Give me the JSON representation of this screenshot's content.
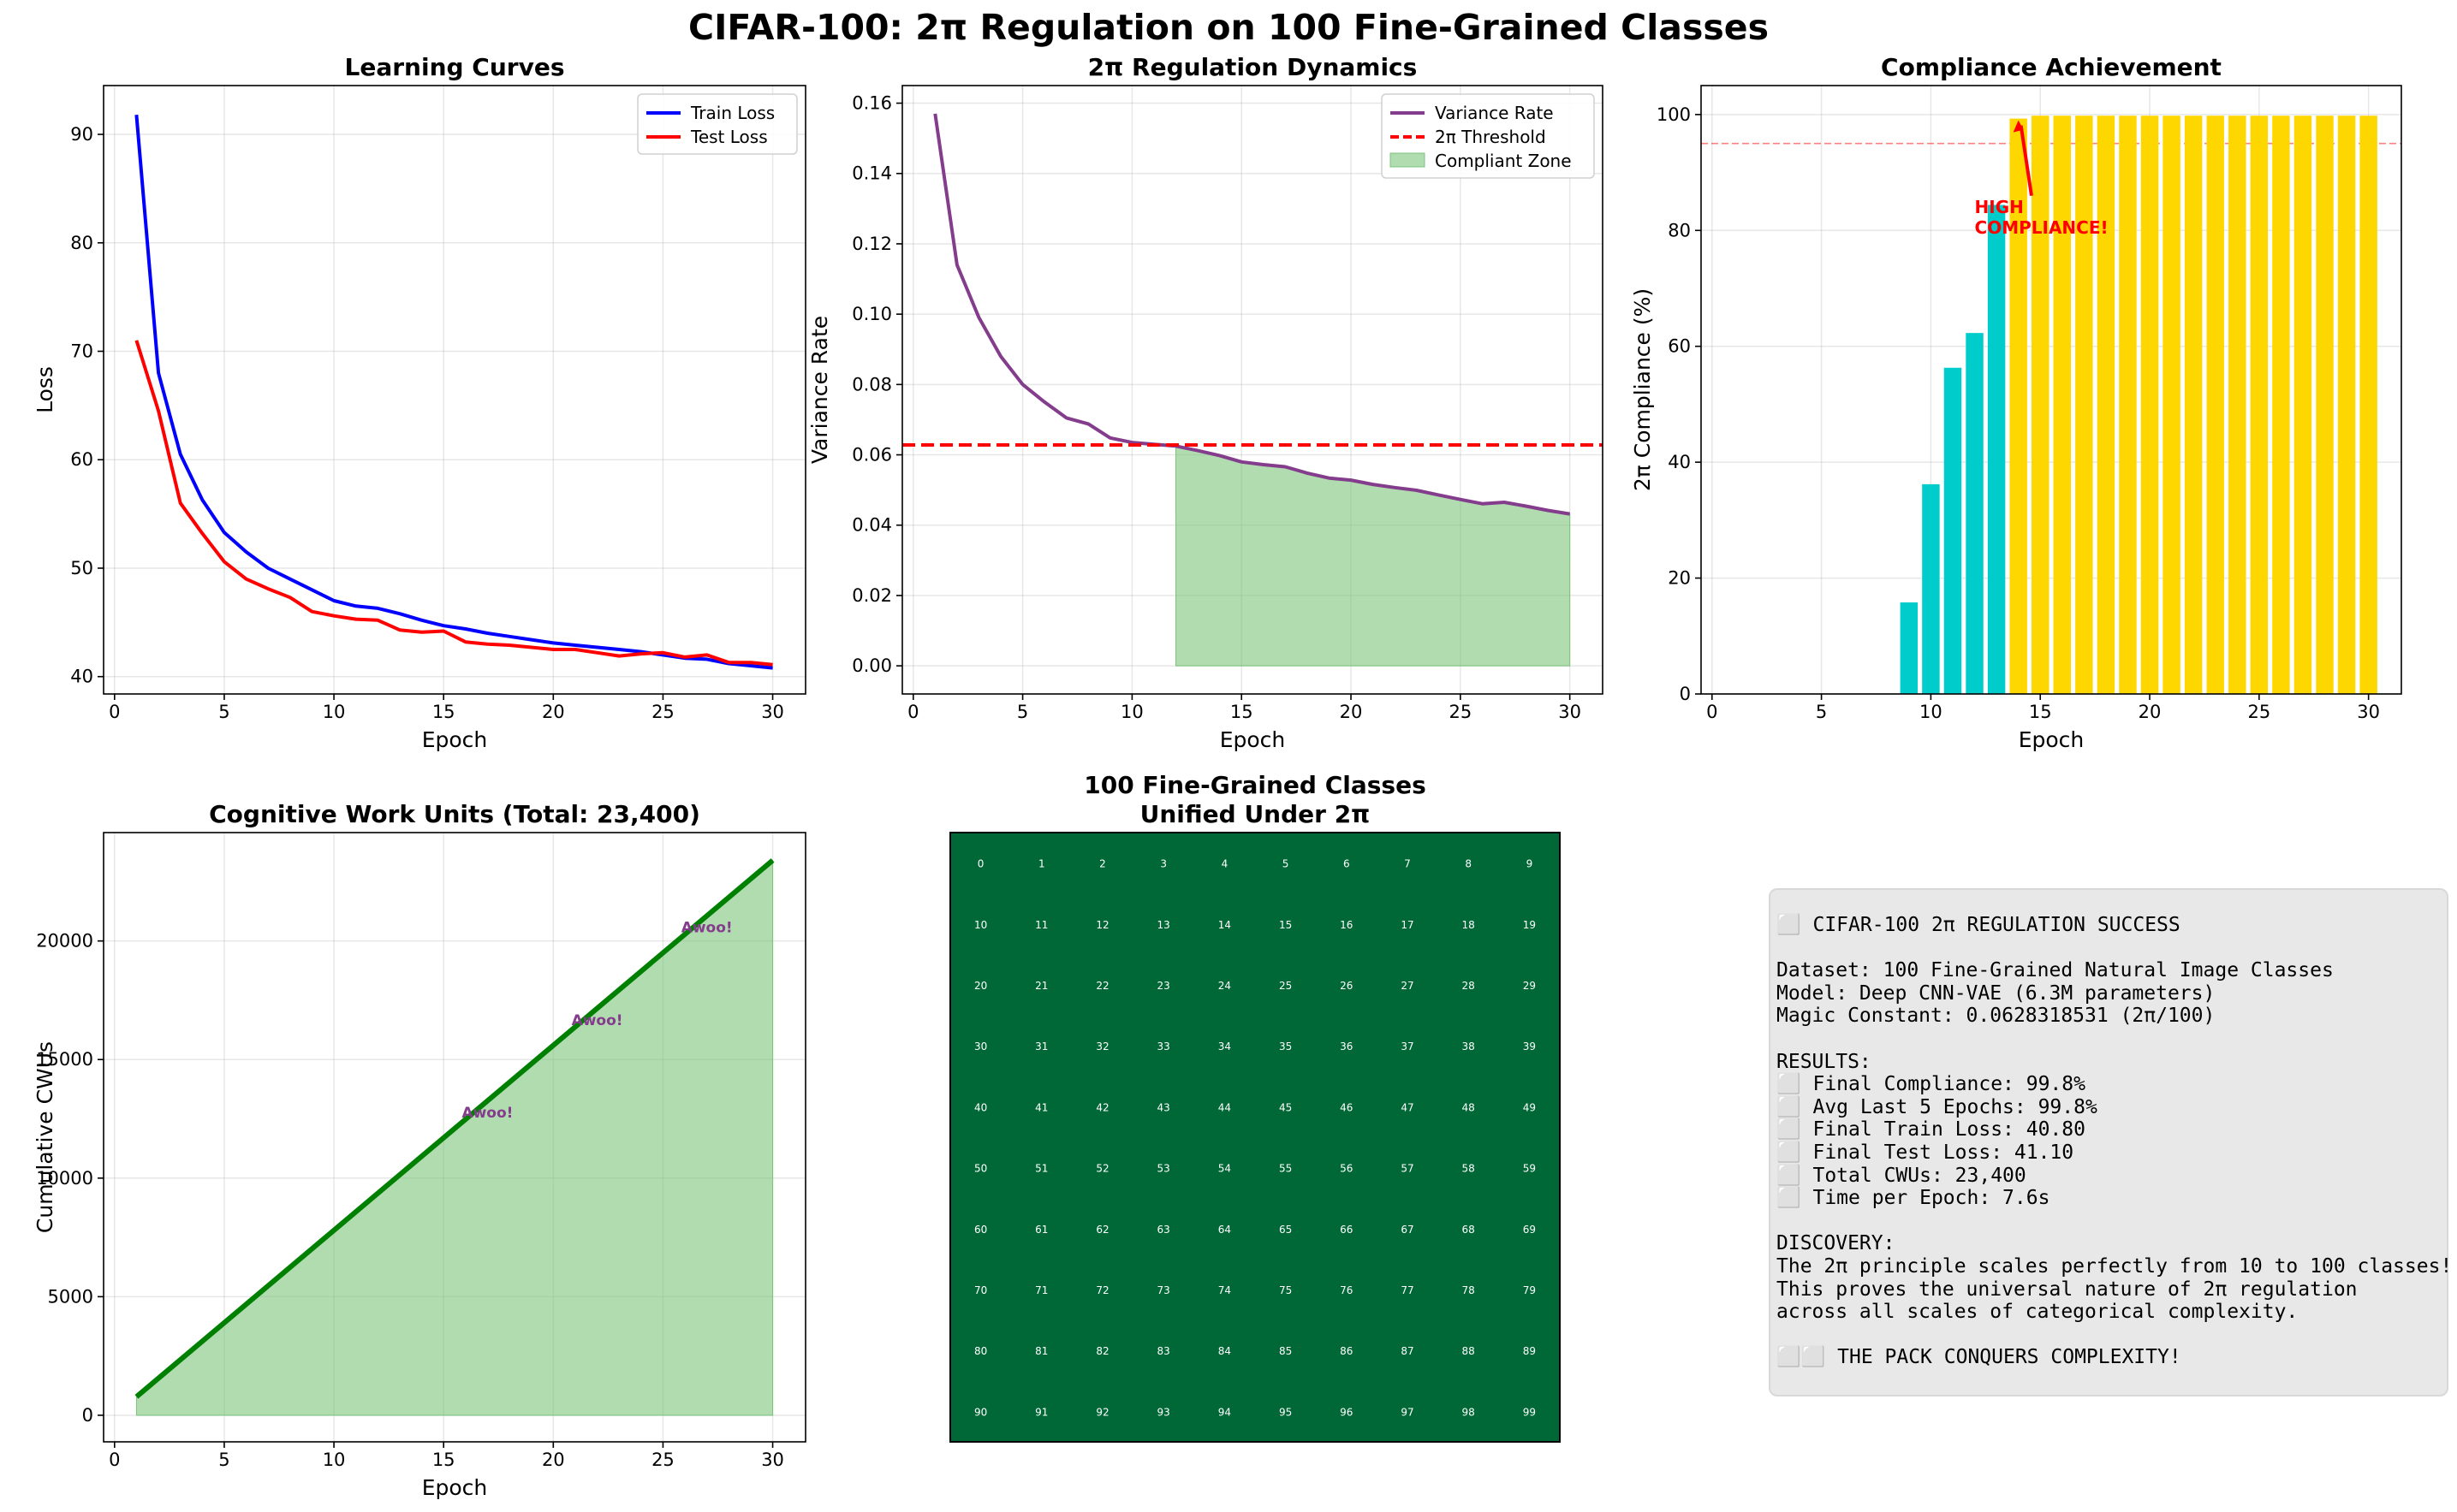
{
  "suptitle": "CIFAR-100: 2π Regulation on 100 Fine-Grained Classes",
  "chart_data": [
    {
      "id": "learning",
      "type": "line",
      "title": "Learning Curves",
      "xlabel": "Epoch",
      "ylabel": "Loss",
      "xlim": [
        -0.5,
        31.5
      ],
      "ylim": [
        38.4,
        94.5
      ],
      "xticks": [
        0,
        5,
        10,
        15,
        20,
        25,
        30
      ],
      "yticks": [
        40,
        50,
        60,
        70,
        80,
        90
      ],
      "grid": true,
      "legend": "top-right",
      "x": [
        1,
        2,
        3,
        4,
        5,
        6,
        7,
        8,
        9,
        10,
        11,
        12,
        13,
        14,
        15,
        16,
        17,
        18,
        19,
        20,
        21,
        22,
        23,
        24,
        25,
        26,
        27,
        28,
        29,
        30
      ],
      "series": [
        {
          "name": "Train Loss",
          "color": "#0000ff",
          "values": [
            91.8,
            68.0,
            60.5,
            56.3,
            53.3,
            51.5,
            50.0,
            49.0,
            48.0,
            47.0,
            46.5,
            46.3,
            45.8,
            45.2,
            44.7,
            44.4,
            44.0,
            43.7,
            43.4,
            43.1,
            42.9,
            42.7,
            42.5,
            42.3,
            42.0,
            41.7,
            41.6,
            41.2,
            41.0,
            40.8
          ]
        },
        {
          "name": "Test Loss",
          "color": "#ff0000",
          "values": [
            71.0,
            64.5,
            56.0,
            53.2,
            50.6,
            49.0,
            48.1,
            47.3,
            46.0,
            45.6,
            45.3,
            45.2,
            44.3,
            44.1,
            44.2,
            43.2,
            43.0,
            42.9,
            42.7,
            42.5,
            42.5,
            42.2,
            41.9,
            42.1,
            42.2,
            41.8,
            42.0,
            41.3,
            41.3,
            41.1
          ]
        }
      ]
    },
    {
      "id": "variance",
      "type": "line",
      "title": "2π Regulation Dynamics",
      "xlabel": "Epoch",
      "ylabel": "Variance Rate",
      "xlim": [
        -0.5,
        31.5
      ],
      "ylim": [
        -0.008,
        0.165
      ],
      "xticks": [
        0,
        5,
        10,
        15,
        20,
        25,
        30
      ],
      "yticks": [
        0.0,
        0.02,
        0.04,
        0.06,
        0.08,
        0.1,
        0.12,
        0.14,
        0.16
      ],
      "grid": true,
      "legend": "top-right",
      "x": [
        1,
        2,
        3,
        4,
        5,
        6,
        7,
        8,
        9,
        10,
        11,
        12,
        13,
        14,
        15,
        16,
        17,
        18,
        19,
        20,
        21,
        22,
        23,
        24,
        25,
        26,
        27,
        28,
        29,
        30
      ],
      "series": [
        {
          "name": "Variance Rate",
          "color": "#843c8c",
          "values": [
            0.157,
            0.114,
            0.099,
            0.088,
            0.08,
            0.075,
            0.0705,
            0.0688,
            0.0648,
            0.0635,
            0.063,
            0.0625,
            0.0612,
            0.0598,
            0.058,
            0.0572,
            0.0566,
            0.0548,
            0.0534,
            0.0528,
            0.0516,
            0.0507,
            0.0499,
            0.0486,
            0.0473,
            0.0461,
            0.0465,
            0.0454,
            0.0442,
            0.0432
          ]
        }
      ],
      "threshold": {
        "name": "2π Threshold",
        "value": 0.0628,
        "color": "#ff0000"
      },
      "fill": {
        "name": "Compliant Zone",
        "from_epoch": 12,
        "color": "#7cc47c"
      }
    },
    {
      "id": "compliance",
      "type": "bar",
      "title": "Compliance Achievement",
      "xlabel": "Epoch",
      "ylabel": "2π Compliance (%)",
      "xlim": [
        -0.5,
        31.5
      ],
      "ylim": [
        0,
        105
      ],
      "xticks": [
        0,
        5,
        10,
        15,
        20,
        25,
        30
      ],
      "yticks": [
        0,
        20,
        40,
        60,
        80,
        100
      ],
      "grid": true,
      "x": [
        1,
        2,
        3,
        4,
        5,
        6,
        7,
        8,
        9,
        10,
        11,
        12,
        13,
        14,
        15,
        16,
        17,
        18,
        19,
        20,
        21,
        22,
        23,
        24,
        25,
        26,
        27,
        28,
        29,
        30
      ],
      "values": [
        0,
        0,
        0,
        0,
        0,
        0,
        0,
        0,
        15.8,
        36.2,
        56.3,
        62.3,
        84.4,
        99.3,
        99.8,
        99.8,
        99.8,
        99.8,
        99.8,
        99.8,
        99.8,
        99.8,
        99.8,
        99.8,
        99.8,
        99.8,
        99.8,
        99.8,
        99.8,
        99.8
      ],
      "low_color": "#00cccc",
      "high_color": "#ffd700",
      "high_cutoff": 95,
      "ref_line": 95,
      "annotation": {
        "text": [
          "HIGH",
          "COMPLIANCE!"
        ],
        "color": "#ff0000",
        "arrow_to_epoch": 14,
        "arrow_to_value": 99
      }
    },
    {
      "id": "cwus",
      "type": "area",
      "title": "Cognitive Work Units (Total: 23,400)",
      "xlabel": "Epoch",
      "ylabel": "Cumulative CWUs",
      "xlim": [
        -0.5,
        31.5
      ],
      "ylim": [
        -1120,
        24570
      ],
      "xticks": [
        0,
        5,
        10,
        15,
        20,
        25,
        30
      ],
      "yticks": [
        0,
        5000,
        10000,
        15000,
        20000
      ],
      "grid": true,
      "x": [
        1,
        30
      ],
      "values": [
        780,
        23400
      ],
      "color": "#008000",
      "fill_color": "#7cc47c",
      "labels": [
        {
          "text": "Awoo!",
          "epoch": 17,
          "value": 12560
        },
        {
          "text": "Awoo!",
          "epoch": 22,
          "value": 16460
        },
        {
          "text": "Awoo!",
          "epoch": 27,
          "value": 20360
        }
      ]
    },
    {
      "id": "classes",
      "type": "heatmap",
      "title": [
        "100 Fine-Grained Classes",
        "Unified Under 2π"
      ],
      "rows": 10,
      "cols": 10,
      "color": "#006837",
      "cell_labels": [
        "0",
        "1",
        "2",
        "3",
        "4",
        "5",
        "6",
        "7",
        "8",
        "9",
        "10",
        "11",
        "12",
        "13",
        "14",
        "15",
        "16",
        "17",
        "18",
        "19",
        "20",
        "21",
        "22",
        "23",
        "24",
        "25",
        "26",
        "27",
        "28",
        "29",
        "30",
        "31",
        "32",
        "33",
        "34",
        "35",
        "36",
        "37",
        "38",
        "39",
        "40",
        "41",
        "42",
        "43",
        "44",
        "45",
        "46",
        "47",
        "48",
        "49",
        "50",
        "51",
        "52",
        "53",
        "54",
        "55",
        "56",
        "57",
        "58",
        "59",
        "60",
        "61",
        "62",
        "63",
        "64",
        "65",
        "66",
        "67",
        "68",
        "69",
        "70",
        "71",
        "72",
        "73",
        "74",
        "75",
        "76",
        "77",
        "78",
        "79",
        "80",
        "81",
        "82",
        "83",
        "84",
        "85",
        "86",
        "87",
        "88",
        "89",
        "90",
        "91",
        "92",
        "93",
        "94",
        "95",
        "96",
        "97",
        "98",
        "99"
      ]
    }
  ],
  "summary_lines": [
    "⬜ CIFAR-100 2π REGULATION SUCCESS",
    "",
    "Dataset: 100 Fine-Grained Natural Image Classes",
    "Model: Deep CNN-VAE (6.3M parameters)",
    "Magic Constant: 0.0628318531 (2π/100)",
    "",
    "RESULTS:",
    "⬜ Final Compliance: 99.8%",
    "⬜ Avg Last 5 Epochs: 99.8%",
    "⬜ Final Train Loss: 40.80",
    "⬜ Final Test Loss: 41.10",
    "⬜ Total CWUs: 23,400",
    "⬜ Time per Epoch: 7.6s",
    "",
    "DISCOVERY:",
    "The 2π principle scales perfectly from 10 to 100 classes!",
    "This proves the universal nature of 2π regulation",
    "across all scales of categorical complexity.",
    "",
    "⬜⬜ THE PACK CONQUERS COMPLEXITY!"
  ]
}
